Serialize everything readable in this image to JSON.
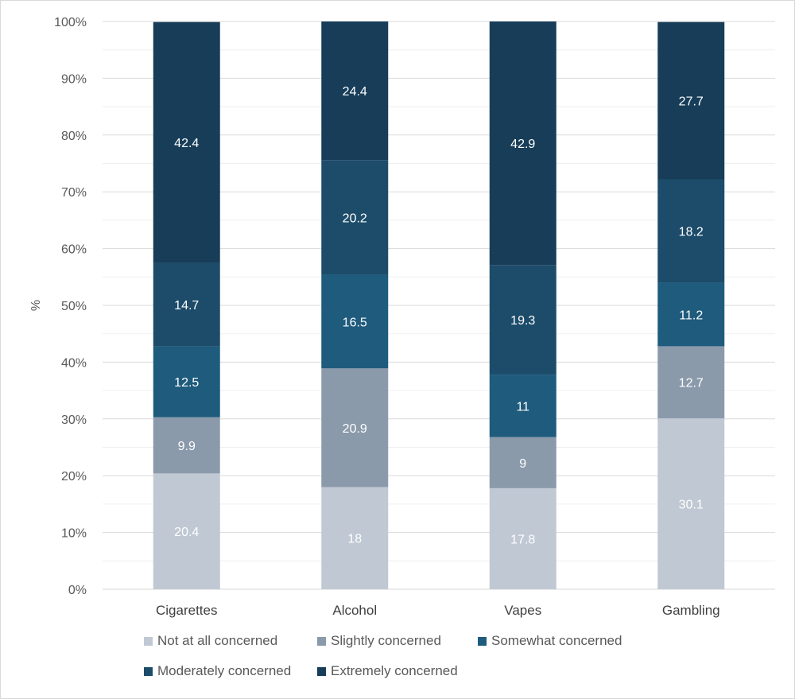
{
  "chart_data": {
    "type": "bar",
    "stacked": true,
    "title": "",
    "xlabel": "",
    "ylabel": "%",
    "ylim": [
      0,
      100
    ],
    "yticks": [
      "0%",
      "10%",
      "20%",
      "30%",
      "40%",
      "50%",
      "60%",
      "70%",
      "80%",
      "90%",
      "100%"
    ],
    "categories": [
      "Cigarettes",
      "Alcohol",
      "Vapes",
      "Gambling"
    ],
    "series": [
      {
        "name": "Not at all concerned",
        "color": "#c0c8d3",
        "label_color": "#ffffff",
        "values": [
          20.4,
          18,
          17.8,
          30.1
        ]
      },
      {
        "name": "Slightly concerned",
        "color": "#8b9aab",
        "label_color": "#ffffff",
        "values": [
          9.9,
          20.9,
          9,
          12.7
        ]
      },
      {
        "name": "Somewhat concerned",
        "color": "#1e5b7d",
        "label_color": "#ffffff",
        "values": [
          12.5,
          16.5,
          11,
          11.2
        ]
      },
      {
        "name": "Moderately concerned",
        "color": "#1c4c6a",
        "label_color": "#ffffff",
        "values": [
          14.7,
          20.2,
          19.3,
          18.2
        ]
      },
      {
        "name": "Extremely concerned",
        "color": "#173d58",
        "label_color": "#ffffff",
        "values": [
          42.4,
          24.4,
          42.9,
          27.7
        ]
      }
    ],
    "data_labels": [
      [
        "20.4",
        "18",
        "17.8",
        "30.1"
      ],
      [
        "9.9",
        "20.9",
        "9",
        "12.7"
      ],
      [
        "12.5",
        "16.5",
        "11",
        "11.2"
      ],
      [
        "14.7",
        "20.2",
        "19.3",
        "18.2"
      ],
      [
        "42.4",
        "24.4",
        "42.9",
        "27.7"
      ]
    ],
    "grid": true,
    "legend_position": "bottom"
  }
}
